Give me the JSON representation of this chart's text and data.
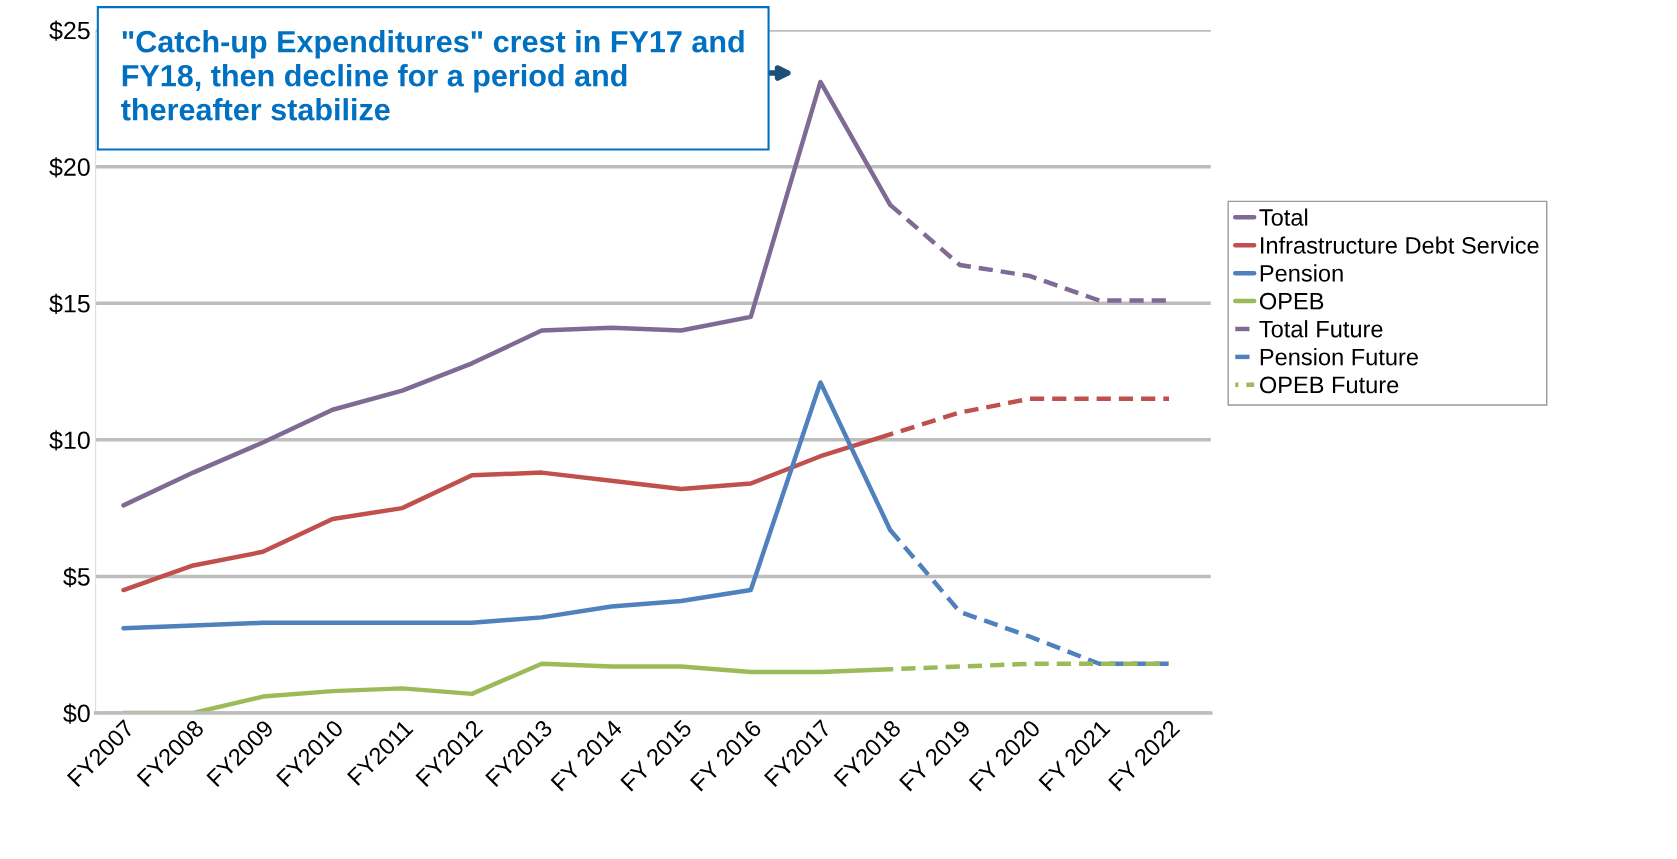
{
  "chart_data": {
    "type": "line",
    "categories": [
      "FY2007",
      "FY2008",
      "FY2009",
      "FY2010",
      "FY2011",
      "FY2012",
      "FY2013",
      "FY 2014",
      "FY 2015",
      "FY 2016",
      "FY2017",
      "FY2018",
      "FY 2019",
      "FY 2020",
      "FY 2021",
      "FY 2022"
    ],
    "series": [
      {
        "name": "Total",
        "color": "#7f6a96",
        "line_style": "solid",
        "values": [
          7.6,
          8.8,
          9.9,
          11.1,
          11.8,
          12.8,
          14.0,
          14.1,
          14.0,
          14.5,
          23.1,
          18.6,
          null,
          null,
          null,
          null
        ]
      },
      {
        "name": "Infrastructure Debt Service",
        "color": "#c0504d",
        "line_style": "solid",
        "values": [
          4.5,
          5.4,
          5.9,
          7.1,
          7.5,
          8.7,
          8.8,
          8.5,
          8.2,
          8.4,
          9.4,
          10.2,
          null,
          null,
          null,
          null
        ]
      },
      {
        "name": "Pension",
        "color": "#4f81bd",
        "line_style": "solid",
        "values": [
          3.1,
          3.2,
          3.3,
          3.3,
          3.3,
          3.3,
          3.5,
          3.9,
          4.1,
          4.5,
          12.1,
          6.7,
          null,
          null,
          null,
          null
        ]
      },
      {
        "name": "OPEB",
        "color": "#9bbb59",
        "line_style": "solid",
        "values": [
          0,
          0,
          0.6,
          0.8,
          0.9,
          0.7,
          1.8,
          1.7,
          1.7,
          1.5,
          1.5,
          1.6,
          null,
          null,
          null,
          null
        ]
      },
      {
        "name": "Total Future",
        "color": "#7f6a96",
        "line_style": "dashed",
        "values": [
          null,
          null,
          null,
          null,
          null,
          null,
          null,
          null,
          null,
          null,
          null,
          18.6,
          16.4,
          16.0,
          15.1,
          15.1
        ]
      },
      {
        "color": "#c0504d",
        "line_style": "dashed",
        "values": [
          null,
          null,
          null,
          null,
          null,
          null,
          null,
          null,
          null,
          null,
          null,
          10.2,
          11.0,
          11.5,
          11.5,
          11.5
        ]
      },
      {
        "name": "Pension Future",
        "color": "#4f81bd",
        "line_style": "dashed",
        "values": [
          null,
          null,
          null,
          null,
          null,
          null,
          null,
          null,
          null,
          null,
          null,
          6.7,
          3.7,
          2.8,
          1.8,
          1.8
        ]
      },
      {
        "name": "OPEB Future",
        "color": "#9bbb59",
        "line_style": "dashed",
        "values": [
          null,
          null,
          null,
          null,
          null,
          null,
          null,
          null,
          null,
          null,
          null,
          1.6,
          1.7,
          1.8,
          1.8,
          1.8
        ]
      }
    ],
    "ylim": [
      0,
      25
    ],
    "yticks": [
      {
        "value": 0,
        "label": "$0"
      },
      {
        "value": 5,
        "label": "$5"
      },
      {
        "value": 10,
        "label": "$10"
      },
      {
        "value": 15,
        "label": "$15"
      },
      {
        "value": 20,
        "label": "$20"
      },
      {
        "value": 25,
        "label": "$25"
      }
    ],
    "grid": "y",
    "legend": "right",
    "marker": "none",
    "annotations": [
      "\"Catch-up Expenditures\" crest in FY17 and FY18, then decline for a period and thereafter stabilize"
    ]
  }
}
